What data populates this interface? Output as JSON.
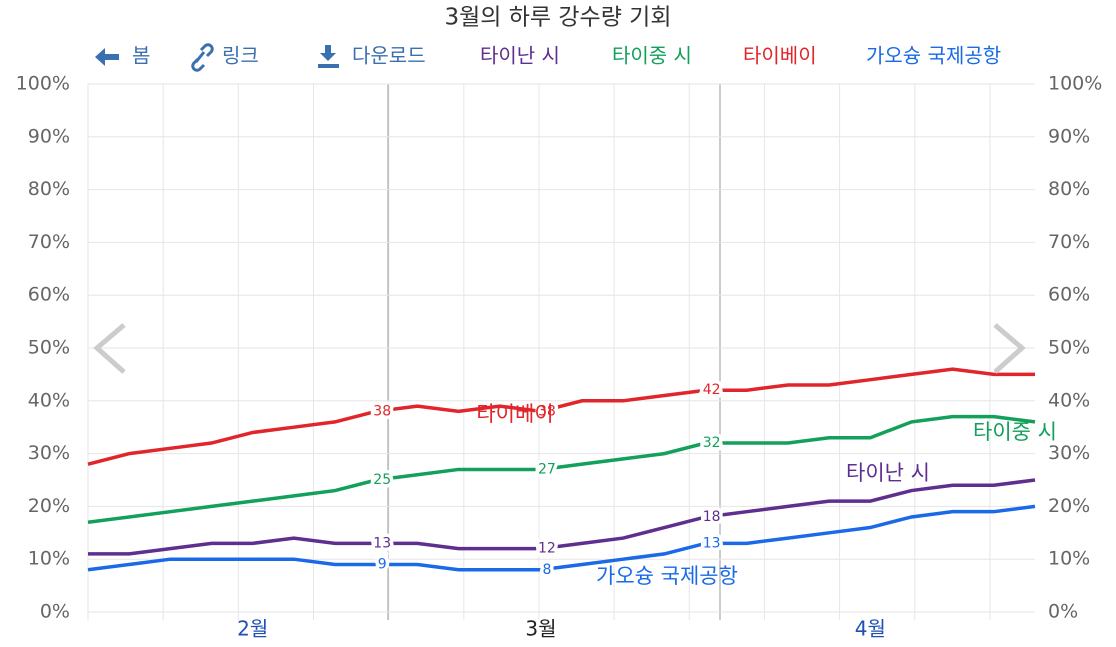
{
  "toolbar": [
    "봄",
    "링크",
    "다운로드"
  ],
  "chart_data": {
    "type": "line",
    "title": "3월의 하루 강수량 기회",
    "categories": [
      null,
      null,
      null,
      null,
      "2월",
      null,
      null,
      null,
      null,
      null,
      null,
      "3월",
      null,
      null,
      null,
      null,
      null,
      null,
      null,
      "4월",
      null,
      null,
      null,
      null
    ],
    "ylim": [
      0,
      100
    ],
    "yticks": [
      {
        "value": 0,
        "label": "0%"
      },
      {
        "value": 10,
        "label": "10%"
      },
      {
        "value": 20,
        "label": "20%"
      },
      {
        "value": 30,
        "label": "30%"
      },
      {
        "value": 40,
        "label": "40%"
      },
      {
        "value": 50,
        "label": "50%"
      },
      {
        "value": 60,
        "label": "60%"
      },
      {
        "value": 70,
        "label": "70%"
      },
      {
        "value": 80,
        "label": "80%"
      },
      {
        "value": 90,
        "label": "90%"
      },
      {
        "value": 100,
        "label": "100%"
      }
    ],
    "grid": true,
    "series": [
      {
        "name": "타이난 시",
        "color": "#5e2f8e",
        "values": [
          11,
          11,
          12,
          13,
          13,
          14,
          13,
          13,
          13,
          12,
          12,
          12,
          13,
          14,
          16,
          18,
          19,
          20,
          21,
          21,
          23,
          24,
          24,
          25
        ],
        "value_labels": [
          null,
          null,
          null,
          null,
          null,
          null,
          null,
          "13",
          null,
          null,
          null,
          "12",
          null,
          null,
          null,
          "18",
          null,
          null,
          null,
          null,
          null,
          null,
          null,
          null
        ]
      },
      {
        "name": "타이중 시",
        "color": "#12a05a",
        "values": [
          17,
          18,
          19,
          20,
          21,
          22,
          23,
          25,
          26,
          27,
          27,
          27,
          28,
          29,
          30,
          32,
          32,
          32,
          33,
          33,
          36,
          37,
          37,
          36
        ],
        "value_labels": [
          null,
          null,
          null,
          null,
          null,
          null,
          null,
          "25",
          null,
          null,
          null,
          "27",
          null,
          null,
          null,
          "32",
          null,
          null,
          null,
          null,
          null,
          null,
          null,
          null
        ]
      },
      {
        "name": "타이베이",
        "color": "#e0262b",
        "values": [
          28,
          30,
          31,
          32,
          34,
          35,
          36,
          38,
          39,
          38,
          39,
          38,
          40,
          40,
          41,
          42,
          42,
          43,
          43,
          44,
          45,
          46,
          45,
          45
        ],
        "value_labels": [
          null,
          null,
          null,
          null,
          null,
          null,
          null,
          "38",
          null,
          null,
          null,
          "38",
          null,
          null,
          null,
          "42",
          null,
          null,
          null,
          null,
          null,
          null,
          null,
          null
        ]
      },
      {
        "name": "가오슝 국제공항",
        "color": "#1a6ae8",
        "values": [
          8,
          9,
          10,
          10,
          10,
          10,
          9,
          9,
          9,
          8,
          8,
          8,
          9,
          10,
          11,
          13,
          13,
          14,
          15,
          16,
          18,
          19,
          19,
          20
        ],
        "value_labels": [
          null,
          null,
          null,
          null,
          null,
          null,
          null,
          "9",
          null,
          null,
          null,
          "8",
          null,
          null,
          null,
          "13",
          null,
          null,
          null,
          null,
          null,
          null,
          null,
          null
        ]
      }
    ]
  }
}
